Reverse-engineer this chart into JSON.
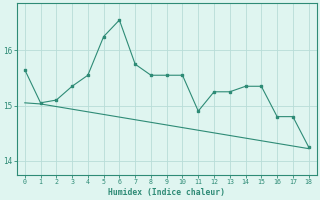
{
  "series1_x": [
    0,
    1,
    2,
    3,
    4,
    5,
    6,
    7,
    8,
    9,
    10,
    11,
    12,
    13,
    14,
    15,
    16,
    17,
    18
  ],
  "series1_y": [
    15.65,
    15.05,
    15.1,
    15.35,
    15.55,
    16.25,
    16.55,
    15.75,
    15.55,
    15.55,
    15.55,
    14.9,
    15.25,
    15.25,
    15.35,
    15.35,
    14.8,
    14.8,
    14.25
  ],
  "series2_x": [
    0,
    1,
    18
  ],
  "series2_y": [
    15.05,
    15.03,
    14.22
  ],
  "line_color": "#2e8b76",
  "bg_color": "#dff5f0",
  "grid_color": "#b8ddd8",
  "xlabel": "Humidex (Indice chaleur)",
  "ylim": [
    13.75,
    16.85
  ],
  "yticks": [
    14,
    15,
    16
  ],
  "xlim": [
    -0.5,
    18.5
  ]
}
